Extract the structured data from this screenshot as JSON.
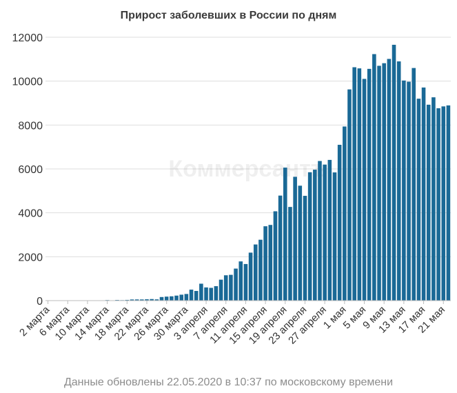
{
  "colors": {
    "bar": "#1a6996",
    "grid": "#dddddd",
    "axis": "#bbbbbb"
  },
  "watermark": "Коммерсантъ",
  "footer": "Данные обновлены 22.05.2020 в 10:37 по московскому времени",
  "chart_data": {
    "type": "bar",
    "title": "Прирост заболевших в России по дням",
    "xlabel": "",
    "ylabel": "",
    "ylim": [
      0,
      12000
    ],
    "yticks": [
      0,
      2000,
      4000,
      6000,
      8000,
      10000,
      12000
    ],
    "grid": true,
    "legend": "none",
    "x_tick_labels": [
      "2 марта",
      "6 марта",
      "10 марта",
      "14 марта",
      "18 марта",
      "22 марта",
      "26 марта",
      "30 марта",
      "3 апреля",
      "7 апреля",
      "11 апреля",
      "15 апреля",
      "19 апреля",
      "23 апреля",
      "27 апреля",
      "1 мая",
      "5 мая",
      "9 мая",
      "13 мая",
      "17 мая",
      "21 мая"
    ],
    "x_tick_every": 4,
    "categories": [
      "2 марта",
      "3 марта",
      "4 марта",
      "5 марта",
      "6 марта",
      "7 марта",
      "8 марта",
      "9 марта",
      "10 марта",
      "11 марта",
      "12 марта",
      "13 марта",
      "14 марта",
      "15 марта",
      "16 марта",
      "17 марта",
      "18 марта",
      "19 марта",
      "20 марта",
      "21 марта",
      "22 марта",
      "23 марта",
      "24 марта",
      "25 марта",
      "26 марта",
      "27 марта",
      "28 марта",
      "29 марта",
      "30 марта",
      "31 марта",
      "1 апреля",
      "2 апреля",
      "3 апреля",
      "4 апреля",
      "5 апреля",
      "6 апреля",
      "7 апреля",
      "8 апреля",
      "9 апреля",
      "10 апреля",
      "11 апреля",
      "12 апреля",
      "13 апреля",
      "14 апреля",
      "15 апреля",
      "16 апреля",
      "17 апреля",
      "18 апреля",
      "19 апреля",
      "20 апреля",
      "21 апреля",
      "22 апреля",
      "23 апреля",
      "24 апреля",
      "25 апреля",
      "26 апреля",
      "27 апреля",
      "28 апреля",
      "29 апреля",
      "30 апреля",
      "1 мая",
      "2 мая",
      "3 мая",
      "4 мая",
      "5 мая",
      "6 мая",
      "7 мая",
      "8 мая",
      "9 мая",
      "10 мая",
      "11 мая",
      "12 мая",
      "13 мая",
      "14 мая",
      "15 мая",
      "16 мая",
      "17 мая",
      "18 мая",
      "19 мая",
      "20 мая",
      "21 мая",
      "22 мая"
    ],
    "values": [
      2,
      1,
      0,
      0,
      1,
      4,
      0,
      7,
      3,
      8,
      6,
      0,
      25,
      14,
      30,
      22,
      33,
      52,
      54,
      53,
      61,
      71,
      57,
      163,
      182,
      196,
      228,
      270,
      302,
      500,
      440,
      771,
      601,
      582,
      658,
      954,
      1154,
      1175,
      1459,
      1786,
      1667,
      2186,
      2558,
      2774,
      3388,
      3448,
      4070,
      4785,
      6060,
      4268,
      5642,
      5236,
      4774,
      5849,
      5966,
      6361,
      6198,
      6411,
      5841,
      7099,
      7933,
      9623,
      10633,
      10581,
      10102,
      10559,
      11231,
      10699,
      10817,
      11012,
      11656,
      10899,
      10028,
      9974,
      10598,
      9200,
      9709,
      8926,
      9263,
      8764,
      8849,
      8894
    ]
  }
}
